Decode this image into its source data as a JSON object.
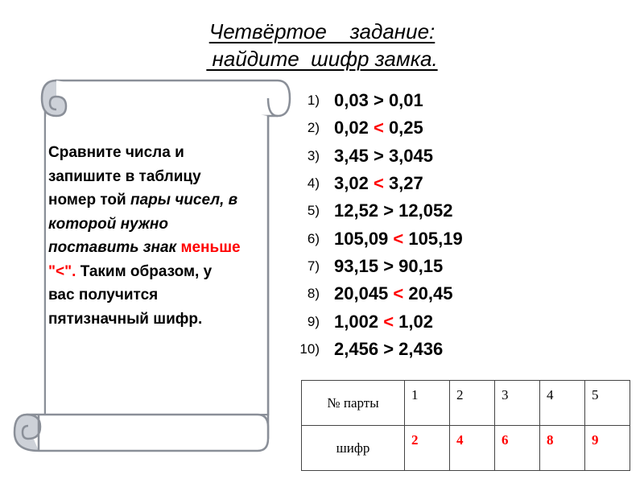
{
  "title": {
    "line1": "Четвёртое    задание:",
    "line2": " найдите  шифр замка."
  },
  "instruction": {
    "part1": "Сравните числа и запишите в таблицу номер той ",
    "part2_italic": "пары чисел, в которой нужно поставить знак",
    "part3_red": "меньше \"<\".",
    "part4": "Таким образом, у вас получится пятизначный шифр."
  },
  "comparisons": [
    {
      "num": "1)",
      "left": "0,03",
      "sign": ">",
      "right": "0,01"
    },
    {
      "num": "2)",
      "left": "0,02",
      "sign": "<",
      "right": "0,25"
    },
    {
      "num": "3)",
      "left": "3,45",
      "sign": ">",
      "right": "3,045"
    },
    {
      "num": "4)",
      "left": "3,02",
      "sign": "<",
      "right": "3,27"
    },
    {
      "num": "5)",
      "left": "12,52",
      "sign": ">",
      "right": "12,052"
    },
    {
      "num": "6)",
      "left": "105,09",
      "sign": "<",
      "right": "105,19"
    },
    {
      "num": "7)",
      "left": "93,15",
      "sign": ">",
      "right": "90,15"
    },
    {
      "num": "8)",
      "left": "20,045",
      "sign": "<",
      "right": "20,45"
    },
    {
      "num": "9)",
      "left": "1,002",
      "sign": "<",
      "right": "1,02"
    },
    {
      "num": "10)",
      "left": "2,456",
      "sign": ">",
      "right": "2,436"
    }
  ],
  "table": {
    "row1_header": "№  парты",
    "row1_values": [
      "1",
      "2",
      "3",
      "4",
      "5"
    ],
    "row2_header": "шифр",
    "row2_values": [
      "2",
      "4",
      "6",
      "8",
      "9"
    ]
  },
  "colors": {
    "accent_red": "#ff0000",
    "scroll_fill": "#ffffff",
    "scroll_stroke": "#8a8f98",
    "scroll_curl": "#cdd1d8"
  }
}
